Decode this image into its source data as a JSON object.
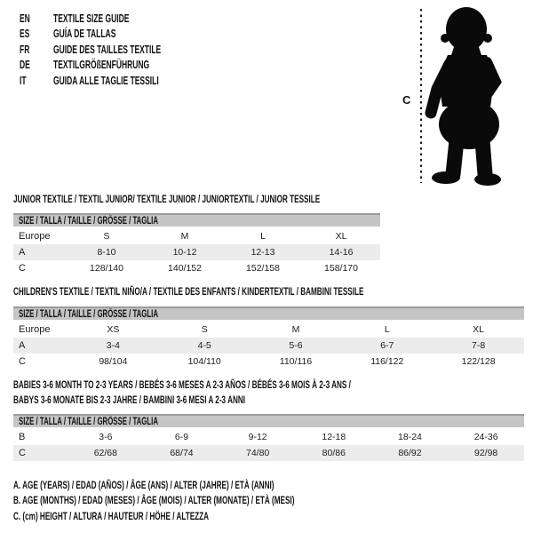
{
  "colors": {
    "ink": "#111111",
    "header_bg": "#c5c5c5",
    "stripe_bg": "#ececec",
    "header_border": "#9b9b9b",
    "silhouette": "#0a0a0a"
  },
  "icons": {
    "figure": "baby-silhouette",
    "measure": "dashed-measure-line"
  },
  "languages": [
    {
      "code": "EN",
      "label": "TEXTILE SIZE GUIDE"
    },
    {
      "code": "ES",
      "label": "GUÍA DE TALLAS"
    },
    {
      "code": "FR",
      "label": "GUIDE DES TAILLES TEXTILE"
    },
    {
      "code": "DE",
      "label": "TEXTILGRÖßENFÜHRUNG"
    },
    {
      "code": "IT",
      "label": "GUIDA ALLE TAGLIE TESSILI"
    }
  ],
  "figure": {
    "measure_label": "C"
  },
  "tables": [
    {
      "title_lines": [
        "JUNIOR TEXTILE / TEXTIL JUNIOR/ TEXTILE JUNIOR / JUNIORTEXTIL / JUNIOR TESSILE"
      ],
      "header": "SIZE / TALLA / TAILLE / GRÖSSE / TAGLIA",
      "rows": [
        {
          "label": "Europe",
          "values": [
            "S",
            "M",
            "L",
            "XL"
          ]
        },
        {
          "label": "A",
          "values": [
            "8-10",
            "10-12",
            "12-13",
            "14-16"
          ]
        },
        {
          "label": "C",
          "values": [
            "128/140",
            "140/152",
            "152/158",
            "158/170"
          ]
        }
      ]
    },
    {
      "title_lines": [
        "CHILDREN'S TEXTILE / TEXTIL NIÑO/A / TEXTILE DES ENFANTS / KINDERTEXTIL / BAMBINI TESSILE"
      ],
      "header": "SIZE / TALLA / TAILLE / GRÖSSE / TAGLIA",
      "rows": [
        {
          "label": "Europe",
          "values": [
            "XS",
            "S",
            "M",
            "L",
            "XL"
          ]
        },
        {
          "label": "A",
          "values": [
            "3-4",
            "4-5",
            "5-6",
            "6-7",
            "7-8"
          ]
        },
        {
          "label": "C",
          "values": [
            "98/104",
            "104/110",
            "110/116",
            "116/122",
            "122/128"
          ]
        }
      ]
    },
    {
      "title_lines": [
        "BABIES 3-6 MONTH TO 2-3 YEARS / BEBÉS 3-6 MESES A 2-3 AÑOS / BÉBÉS 3-6 MOIS À 2-3 ANS /",
        "BABYS 3-6 MONATE BIS 2-3 JAHRE / BAMBINI 3-6 MESI A 2-3 ANNI"
      ],
      "header": "SIZE / TALLA / TAILLE / GRÖSSE / TAGLIA",
      "rows": [
        {
          "label": "B",
          "values": [
            "3-6",
            "6-9",
            "9-12",
            "12-18",
            "18-24",
            "24-36"
          ]
        },
        {
          "label": "C",
          "values": [
            "62/68",
            "68/74",
            "74/80",
            "80/86",
            "86/92",
            "92/98"
          ]
        }
      ]
    }
  ],
  "footnotes": [
    "A. AGE (YEARS) / EDAD (AÑOS) / ÂGE (ANS) / ALTER (JAHRE) / ETÀ (ANNI)",
    "B. AGE (MONTHS) / EDAD (MESES) / ÂGE (MOIS) / ALTER (MONATE) / ETÀ (MESI)",
    "C. (cm) HEIGHT / ALTURA / HAUTEUR / HÖHE / ALTEZZA"
  ]
}
